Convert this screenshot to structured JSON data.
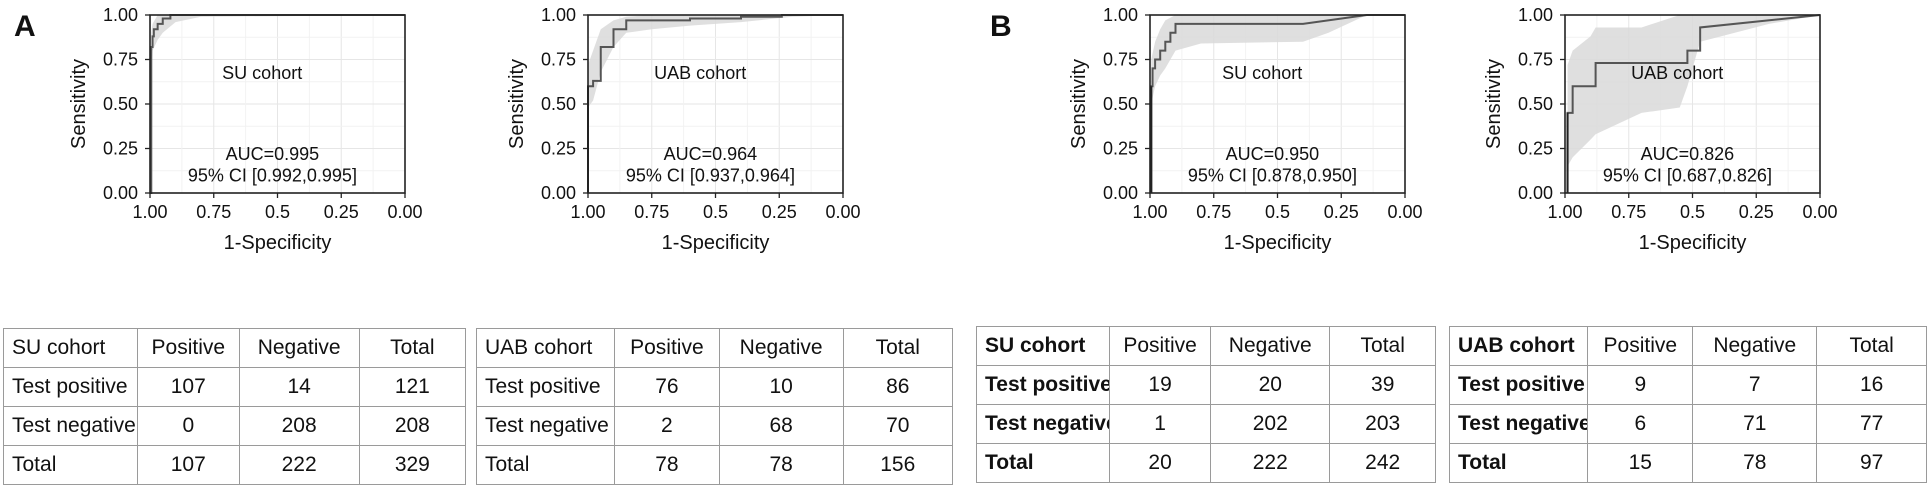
{
  "panels": [
    {
      "letter": "A"
    },
    {
      "letter": "B"
    }
  ],
  "chart_data": [
    {
      "type": "line",
      "panel": "A",
      "title": "",
      "annotation": "SU cohort",
      "auc_text": "AUC=0.995",
      "ci_text": "95% CI [0.992,0.995]",
      "xlabel": "1-Specificity",
      "ylabel": "Sensitivity",
      "xlim": [
        1.0,
        0.0
      ],
      "ylim": [
        0.0,
        1.0
      ],
      "x_ticks": [
        "1.00",
        "0.75",
        "0.5",
        "0.25",
        "0.00"
      ],
      "y_ticks": [
        "0.00",
        "0.25",
        "0.50",
        "0.75",
        "1.00"
      ],
      "grid": true,
      "series": [
        {
          "x": [
            1.0,
            0.995,
            0.995,
            0.99,
            0.99,
            0.985,
            0.985,
            0.97,
            0.97,
            0.95,
            0.95,
            0.92,
            0.92,
            0.0
          ],
          "y": [
            0.0,
            0.0,
            0.82,
            0.82,
            0.88,
            0.88,
            0.92,
            0.92,
            0.95,
            0.95,
            0.98,
            0.98,
            1.0,
            1.0
          ]
        }
      ],
      "ci_band": {
        "x": [
          0.995,
          0.99,
          0.97,
          0.95,
          0.9,
          0.8,
          0.0
        ],
        "upper": [
          0.9,
          0.95,
          1.0,
          1.0,
          1.0,
          1.0,
          1.0
        ],
        "lower": [
          0.72,
          0.8,
          0.86,
          0.9,
          0.96,
          0.99,
          1.0
        ]
      }
    },
    {
      "type": "line",
      "panel": "A",
      "title": "",
      "annotation": "UAB cohort",
      "auc_text": "AUC=0.964",
      "ci_text": "95% CI [0.937,0.964]",
      "xlabel": "1-Specificity",
      "ylabel": "Sensitivity",
      "xlim": [
        1.0,
        0.0
      ],
      "ylim": [
        0.0,
        1.0
      ],
      "x_ticks": [
        "1.00",
        "0.75",
        "0.5",
        "0.25",
        "0.00"
      ],
      "y_ticks": [
        "0.00",
        "0.25",
        "0.50",
        "0.75",
        "1.00"
      ],
      "grid": true,
      "series": [
        {
          "x": [
            1.0,
            1.0,
            0.98,
            0.98,
            0.95,
            0.95,
            0.9,
            0.9,
            0.85,
            0.85,
            0.6,
            0.6,
            0.4,
            0.4,
            0.24,
            0.24,
            0.0
          ],
          "y": [
            0.0,
            0.6,
            0.6,
            0.63,
            0.63,
            0.82,
            0.82,
            0.92,
            0.92,
            0.97,
            0.97,
            0.98,
            0.98,
            0.99,
            0.99,
            1.0,
            1.0
          ]
        }
      ],
      "ci_band": {
        "x": [
          1.0,
          0.98,
          0.95,
          0.9,
          0.85,
          0.75,
          0.6,
          0.4,
          0.2,
          0.0
        ],
        "upper": [
          0.72,
          0.8,
          0.92,
          0.97,
          0.99,
          1.0,
          1.0,
          1.0,
          1.0,
          1.0
        ],
        "lower": [
          0.48,
          0.52,
          0.68,
          0.82,
          0.9,
          0.92,
          0.94,
          0.96,
          0.99,
          1.0
        ]
      }
    },
    {
      "type": "line",
      "panel": "B",
      "title": "",
      "annotation": "SU cohort",
      "auc_text": "AUC=0.950",
      "ci_text": "95% CI [0.878,0.950]",
      "xlabel": "1-Specificity",
      "ylabel": "Sensitivity",
      "xlim": [
        1.0,
        0.0
      ],
      "ylim": [
        0.0,
        1.0
      ],
      "x_ticks": [
        "1.00",
        "0.75",
        "0.5",
        "0.25",
        "0.00"
      ],
      "y_ticks": [
        "0.00",
        "0.25",
        "0.50",
        "0.75",
        "1.00"
      ],
      "grid": true,
      "series": [
        {
          "x": [
            0.995,
            0.995,
            0.99,
            0.99,
            0.98,
            0.98,
            0.96,
            0.96,
            0.94,
            0.94,
            0.92,
            0.92,
            0.9,
            0.9,
            0.4,
            0.15,
            0.15,
            0.0
          ],
          "y": [
            0.0,
            0.6,
            0.6,
            0.7,
            0.7,
            0.75,
            0.75,
            0.8,
            0.8,
            0.85,
            0.85,
            0.9,
            0.9,
            0.95,
            0.95,
            1.0,
            1.0,
            1.0
          ]
        }
      ],
      "ci_band": {
        "x": [
          0.995,
          0.98,
          0.96,
          0.94,
          0.9,
          0.8,
          0.4,
          0.3,
          0.15,
          0.0
        ],
        "upper": [
          0.75,
          0.85,
          0.92,
          0.97,
          1.0,
          1.0,
          1.0,
          1.0,
          1.0,
          1.0
        ],
        "lower": [
          0.5,
          0.6,
          0.66,
          0.7,
          0.8,
          0.84,
          0.85,
          0.9,
          1.0,
          1.0
        ]
      }
    },
    {
      "type": "line",
      "panel": "B",
      "title": "",
      "annotation": "UAB cohort",
      "auc_text": "AUC=0.826",
      "ci_text": "95% CI [0.687,0.826]",
      "xlabel": "1-Specificity",
      "ylabel": "Sensitivity",
      "xlim": [
        1.0,
        0.0
      ],
      "ylim": [
        0.0,
        1.0
      ],
      "x_ticks": [
        "1.00",
        "0.75",
        "0.5",
        "0.25",
        "0.00"
      ],
      "y_ticks": [
        "0.00",
        "0.25",
        "0.50",
        "0.75",
        "1.00"
      ],
      "grid": true,
      "series": [
        {
          "x": [
            0.99,
            0.99,
            0.97,
            0.97,
            0.88,
            0.88,
            0.52,
            0.52,
            0.47,
            0.47,
            0.0
          ],
          "y": [
            0.0,
            0.45,
            0.45,
            0.6,
            0.6,
            0.73,
            0.73,
            0.8,
            0.8,
            0.93,
            1.0
          ]
        }
      ],
      "ci_band": {
        "x": [
          0.99,
          0.97,
          0.9,
          0.88,
          0.7,
          0.55,
          0.52,
          0.47,
          0.2,
          0.0
        ],
        "upper": [
          0.72,
          0.8,
          0.88,
          0.93,
          0.93,
          1.0,
          1.0,
          1.0,
          1.0,
          1.0
        ],
        "lower": [
          0.15,
          0.2,
          0.3,
          0.33,
          0.45,
          0.48,
          0.6,
          0.85,
          0.95,
          1.0
        ]
      }
    },
    {
      "type": "table",
      "panel": "A",
      "columns": [
        "SU cohort",
        "Positive",
        "Negative",
        "Total"
      ],
      "rows": [
        [
          "Test positive",
          "107",
          "14",
          "121"
        ],
        [
          "Test negative",
          "0",
          "208",
          "208"
        ],
        [
          "Total",
          "107",
          "222",
          "329"
        ]
      ]
    },
    {
      "type": "table",
      "panel": "A",
      "columns": [
        "UAB cohort",
        "Positive",
        "Negative",
        "Total"
      ],
      "rows": [
        [
          "Test positive",
          "76",
          "10",
          "86"
        ],
        [
          "Test negative",
          "2",
          "68",
          "70"
        ],
        [
          "Total",
          "78",
          "78",
          "156"
        ]
      ]
    },
    {
      "type": "table",
      "panel": "B",
      "columns": [
        "SU cohort",
        "Positive",
        "Negative",
        "Total"
      ],
      "rows": [
        [
          "Test positive",
          "19",
          "20",
          "39"
        ],
        [
          "Test negative",
          "1",
          "202",
          "203"
        ],
        [
          "Total",
          "20",
          "222",
          "242"
        ]
      ]
    },
    {
      "type": "table",
      "panel": "B",
      "columns": [
        "UAB cohort",
        "Positive",
        "Negative",
        "Total"
      ],
      "rows": [
        [
          "Test positive",
          "9",
          "7",
          "16"
        ],
        [
          "Test negative",
          "6",
          "71",
          "77"
        ],
        [
          "Total",
          "15",
          "78",
          "97"
        ]
      ]
    }
  ]
}
